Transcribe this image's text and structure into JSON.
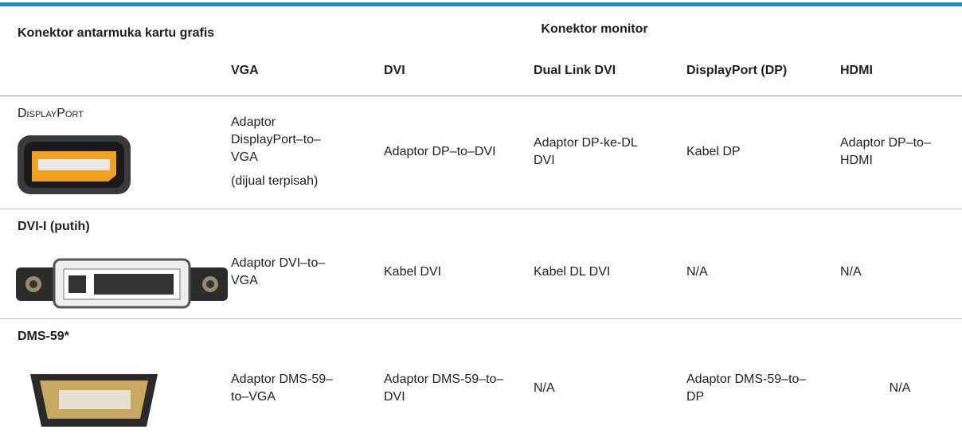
{
  "table": {
    "corner_header": "Konektor antarmuka kartu grafis",
    "group_header": "Konektor monitor",
    "columns": [
      "VGA",
      "DVI",
      "Dual Link DVI",
      "DisplayPort (DP)",
      "HDMI"
    ],
    "rows": [
      {
        "connector": "DisplayPort",
        "cells": [
          [
            "Adaptor DisplayPort–to–VGA",
            "(dijual terpisah)"
          ],
          [
            "Adaptor DP–to–DVI"
          ],
          [
            "Adaptor DP-ke-DL DVI"
          ],
          [
            "Kabel DP"
          ],
          [
            "Adaptor DP–to–HDMI"
          ]
        ]
      },
      {
        "connector": "DVI-I (putih)",
        "cells": [
          [
            "Adaptor DVI–to–VGA"
          ],
          [
            "Kabel DVI"
          ],
          [
            "Kabel DL DVI"
          ],
          [
            "N/A"
          ],
          [
            "N/A"
          ]
        ]
      },
      {
        "connector": "DMS-59*",
        "cells": [
          [
            "Adaptor DMS-59–to–VGA"
          ],
          [
            "Adaptor DMS-59–to–DVI"
          ],
          [
            "N/A"
          ],
          [
            "Adaptor DMS-59–to–DP"
          ],
          [
            "N/A"
          ]
        ]
      }
    ]
  }
}
